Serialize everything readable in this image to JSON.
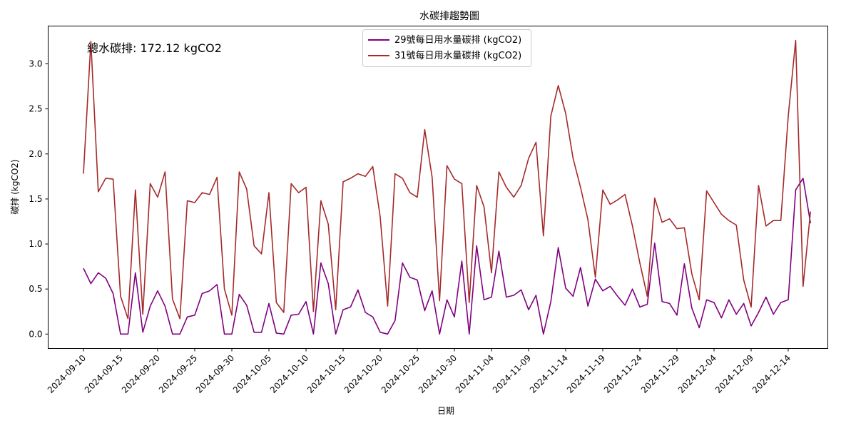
{
  "chart_data": {
    "type": "line",
    "title": "水碳排趨勢圖",
    "xlabel": "日期",
    "ylabel": "碳排 (kgCO2)",
    "annotation": "總水碳排: 172.12 kgCO2",
    "start_date": "2024-09-10",
    "x_ticks": [
      "2024-09-10",
      "2024-09-15",
      "2024-09-20",
      "2024-09-25",
      "2024-09-30",
      "2024-10-05",
      "2024-10-10",
      "2024-10-15",
      "2024-10-20",
      "2024-10-25",
      "2024-10-30",
      "2024-11-04",
      "2024-11-09",
      "2024-11-14",
      "2024-11-19",
      "2024-11-24",
      "2024-11-29",
      "2024-12-04",
      "2024-12-09",
      "2024-12-14"
    ],
    "y_ticks": [
      "0.0",
      "0.5",
      "1.0",
      "1.5",
      "2.0",
      "2.5",
      "3.0"
    ],
    "ylim": [
      -0.16,
      3.42
    ],
    "grid": false,
    "legend_position": "top-center",
    "series": [
      {
        "name": "29號每日用水量碳排 (kgCO2)",
        "color": "#800080",
        "values": [
          0.73,
          0.56,
          0.68,
          0.62,
          0.45,
          0.0,
          0.0,
          0.68,
          0.02,
          0.31,
          0.48,
          0.31,
          0.0,
          0.0,
          0.19,
          0.21,
          0.45,
          0.48,
          0.55,
          0.0,
          0.0,
          0.44,
          0.32,
          0.02,
          0.02,
          0.34,
          0.01,
          0.0,
          0.21,
          0.22,
          0.36,
          0.0,
          0.79,
          0.56,
          0.0,
          0.27,
          0.3,
          0.49,
          0.24,
          0.19,
          0.02,
          0.0,
          0.15,
          0.79,
          0.63,
          0.6,
          0.26,
          0.48,
          0.0,
          0.38,
          0.19,
          0.81,
          0.0,
          0.98,
          0.38,
          0.41,
          0.92,
          0.41,
          0.43,
          0.49,
          0.27,
          0.43,
          0.0,
          0.36,
          0.96,
          0.51,
          0.42,
          0.74,
          0.31,
          0.61,
          0.48,
          0.53,
          0.42,
          0.32,
          0.5,
          0.3,
          0.33,
          1.01,
          0.36,
          0.34,
          0.21,
          0.78,
          0.29,
          0.07,
          0.38,
          0.35,
          0.18,
          0.38,
          0.22,
          0.34,
          0.09,
          0.24,
          0.41,
          0.22,
          0.35,
          0.38,
          1.6,
          1.73,
          1.23
        ]
      },
      {
        "name": "31號每日用水量碳排 (kgCO2)",
        "color": "#a52a2a",
        "values": [
          1.78,
          3.25,
          1.58,
          1.73,
          1.72,
          0.42,
          0.17,
          1.6,
          0.22,
          1.67,
          1.52,
          1.8,
          0.39,
          0.17,
          1.48,
          1.46,
          1.57,
          1.55,
          1.74,
          0.5,
          0.21,
          1.8,
          1.61,
          0.98,
          0.89,
          1.57,
          0.35,
          0.24,
          1.67,
          1.57,
          1.63,
          0.25,
          1.48,
          1.22,
          0.27,
          1.69,
          1.73,
          1.78,
          1.75,
          1.86,
          1.3,
          0.31,
          1.78,
          1.73,
          1.57,
          1.52,
          2.27,
          1.74,
          0.37,
          1.87,
          1.72,
          1.67,
          0.35,
          1.65,
          1.41,
          0.68,
          1.8,
          1.63,
          1.52,
          1.65,
          1.95,
          2.13,
          1.09,
          2.42,
          2.76,
          2.45,
          1.95,
          1.63,
          1.27,
          0.63,
          1.6,
          1.44,
          1.49,
          1.55,
          1.2,
          0.79,
          0.42,
          1.51,
          1.24,
          1.28,
          1.17,
          1.18,
          0.67,
          0.38,
          1.59,
          1.46,
          1.33,
          1.26,
          1.21,
          0.6,
          0.3,
          1.65,
          1.2,
          1.26,
          1.26,
          2.42,
          3.26,
          0.53,
          1.36
        ]
      }
    ]
  }
}
